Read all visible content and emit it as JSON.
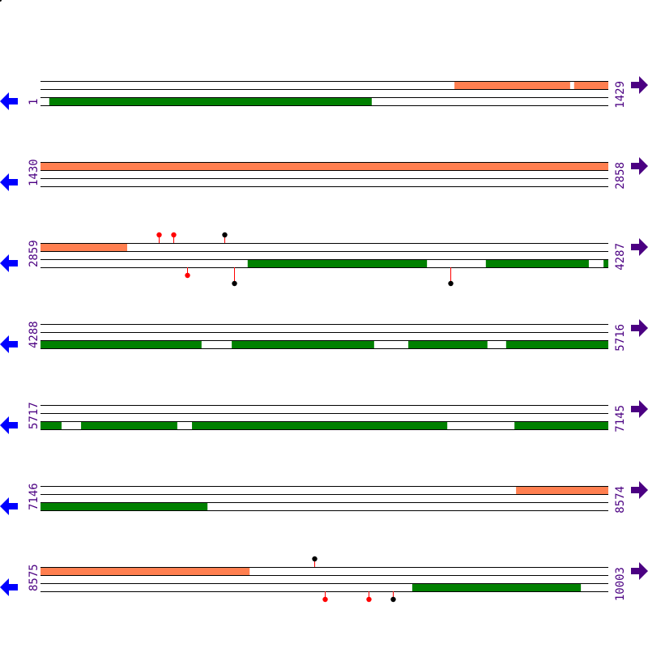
{
  "colors": {
    "forward": "#ff7f50",
    "reverse": "#008000",
    "label": "#4b0082",
    "left_arrow": "#0000ff",
    "right_arrow": "#4b0082",
    "stem": "#ff0000",
    "marker_red": "#ff0000",
    "marker_black": "#000000",
    "line": "#000000"
  },
  "rows": [
    {
      "start": "1",
      "end": "1429",
      "s": 1,
      "e": 1429,
      "forward": [
        [
          1042,
          1333
        ],
        [
          1343,
          1429
        ]
      ],
      "reverse": [
        [
          23,
          834
        ]
      ],
      "markers": []
    },
    {
      "start": "1430",
      "end": "2858",
      "s": 1430,
      "e": 2858,
      "forward": [
        [
          1430,
          2858
        ]
      ],
      "reverse": [],
      "markers": []
    },
    {
      "start": "2859",
      "end": "4287",
      "s": 2859,
      "e": 4287,
      "forward": [
        [
          2859,
          3077
        ]
      ],
      "reverse": [
        [
          3380,
          3831
        ],
        [
          3979,
          4238
        ],
        [
          4275,
          4287
        ]
      ],
      "markers": [
        {
          "pos": 3156,
          "strand": "top",
          "color": "red",
          "level": 1
        },
        {
          "pos": 3193,
          "strand": "top",
          "color": "red",
          "level": 1
        },
        {
          "pos": 3321,
          "strand": "top",
          "color": "black",
          "level": 1
        },
        {
          "pos": 3228,
          "strand": "bottom",
          "color": "red",
          "level": 1
        },
        {
          "pos": 3346,
          "strand": "bottom",
          "color": "black",
          "level": 2
        },
        {
          "pos": 3890,
          "strand": "bottom",
          "color": "black",
          "level": 2
        }
      ]
    },
    {
      "start": "4288",
      "end": "5716",
      "s": 4288,
      "e": 5716,
      "forward": [],
      "reverse": [
        [
          4288,
          4693
        ],
        [
          4769,
          5127
        ],
        [
          5213,
          5412
        ],
        [
          5459,
          5716
        ]
      ],
      "markers": []
    },
    {
      "start": "5717",
      "end": "7145",
      "s": 5717,
      "e": 7145,
      "forward": [],
      "reverse": [
        [
          5717,
          5770
        ],
        [
          5819,
          6061
        ],
        [
          6098,
          6740
        ],
        [
          6909,
          7145
        ]
      ],
      "markers": []
    },
    {
      "start": "7146",
      "end": "8574",
      "s": 7146,
      "e": 8574,
      "forward": [
        [
          8342,
          8574
        ]
      ],
      "reverse": [
        [
          7146,
          7566
        ]
      ],
      "markers": []
    },
    {
      "start": "8575",
      "end": "10003",
      "s": 8575,
      "e": 10003,
      "forward": [
        [
          8575,
          9101
        ]
      ],
      "reverse": [
        [
          9510,
          9934
        ]
      ],
      "markers": [
        {
          "pos": 9264,
          "strand": "top",
          "color": "black",
          "level": 1
        },
        {
          "pos": 9290,
          "strand": "bottom",
          "color": "red",
          "level": 1
        },
        {
          "pos": 9400,
          "strand": "bottom",
          "color": "red",
          "level": 1
        },
        {
          "pos": 9461,
          "strand": "bottom",
          "color": "black",
          "level": 1
        }
      ]
    }
  ]
}
